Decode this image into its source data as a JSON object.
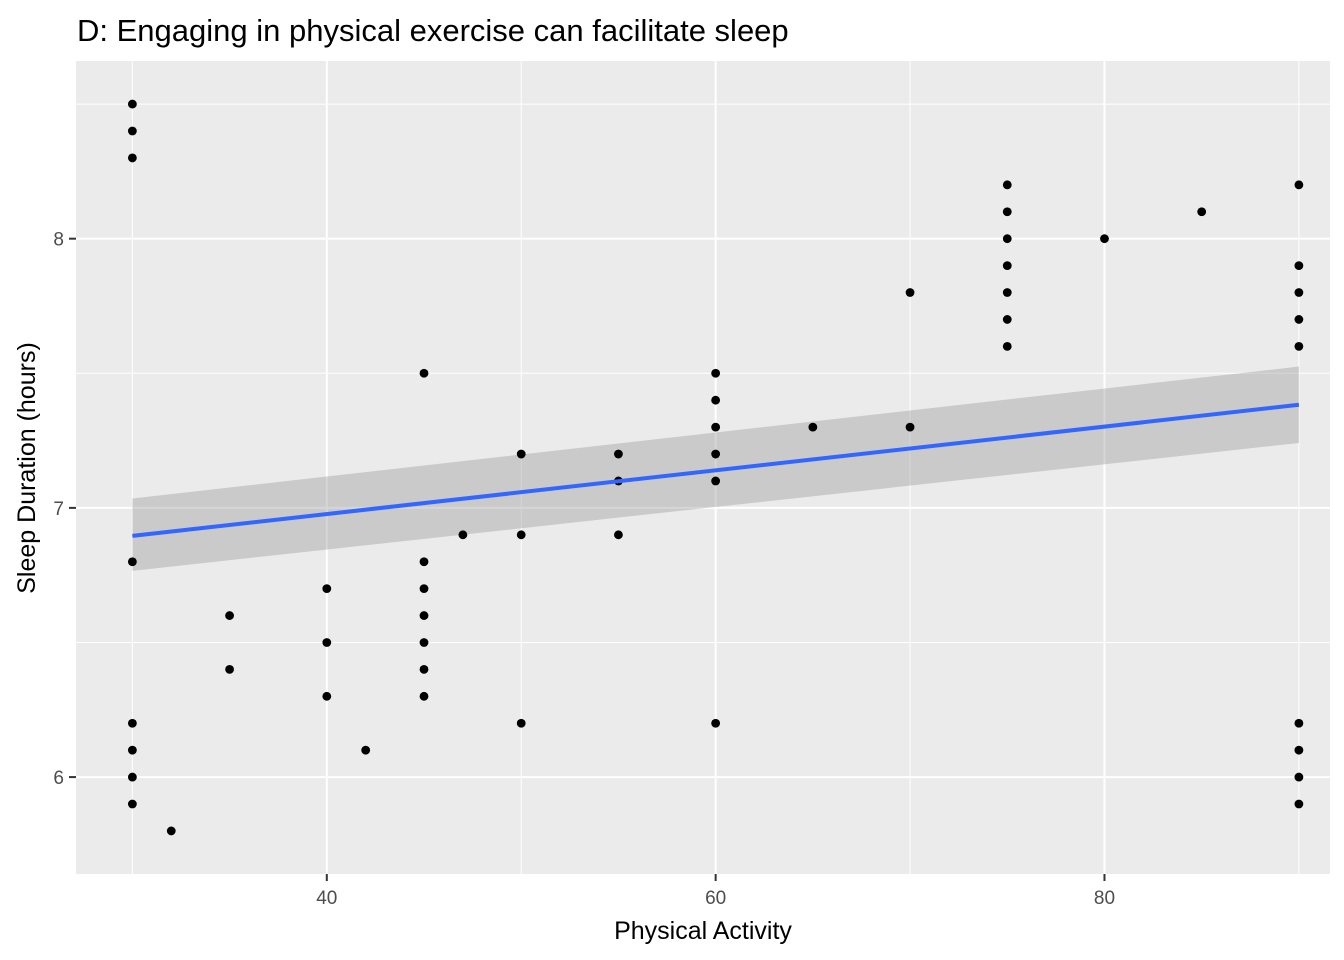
{
  "chart_data": {
    "type": "scatter",
    "title": "D: Engaging in physical exercise can facilitate sleep",
    "xlabel": "Physical Activity",
    "ylabel": "Sleep Duration (hours)",
    "xlim": [
      27.1,
      91.6
    ],
    "ylim": [
      5.64,
      8.66
    ],
    "x_ticks": [
      40,
      60,
      80
    ],
    "y_ticks": [
      6,
      7,
      8
    ],
    "x_tick_labels": [
      "40",
      "60",
      "80"
    ],
    "y_tick_labels": [
      "6",
      "7",
      "8"
    ],
    "grid": true,
    "background_color": "#ebebeb",
    "point_color": "#000000",
    "points": [
      {
        "x": 30,
        "y": 8.5
      },
      {
        "x": 30,
        "y": 8.4
      },
      {
        "x": 30,
        "y": 8.3
      },
      {
        "x": 30,
        "y": 6.8
      },
      {
        "x": 30,
        "y": 6.2
      },
      {
        "x": 30,
        "y": 6.1
      },
      {
        "x": 30,
        "y": 6.0
      },
      {
        "x": 30,
        "y": 5.9
      },
      {
        "x": 32,
        "y": 5.8
      },
      {
        "x": 35,
        "y": 6.6
      },
      {
        "x": 35,
        "y": 6.4
      },
      {
        "x": 40,
        "y": 6.7
      },
      {
        "x": 40,
        "y": 6.5
      },
      {
        "x": 40,
        "y": 6.3
      },
      {
        "x": 42,
        "y": 6.1
      },
      {
        "x": 45,
        "y": 7.5
      },
      {
        "x": 45,
        "y": 6.8
      },
      {
        "x": 45,
        "y": 6.7
      },
      {
        "x": 45,
        "y": 6.6
      },
      {
        "x": 45,
        "y": 6.5
      },
      {
        "x": 45,
        "y": 6.4
      },
      {
        "x": 45,
        "y": 6.3
      },
      {
        "x": 47,
        "y": 6.9
      },
      {
        "x": 50,
        "y": 7.2
      },
      {
        "x": 50,
        "y": 6.9
      },
      {
        "x": 50,
        "y": 6.2
      },
      {
        "x": 55,
        "y": 7.2
      },
      {
        "x": 55,
        "y": 7.1
      },
      {
        "x": 55,
        "y": 6.9
      },
      {
        "x": 60,
        "y": 7.5
      },
      {
        "x": 60,
        "y": 7.4
      },
      {
        "x": 60,
        "y": 7.3
      },
      {
        "x": 60,
        "y": 7.2
      },
      {
        "x": 60,
        "y": 7.1
      },
      {
        "x": 60,
        "y": 6.2
      },
      {
        "x": 65,
        "y": 7.3
      },
      {
        "x": 70,
        "y": 7.8
      },
      {
        "x": 70,
        "y": 7.3
      },
      {
        "x": 75,
        "y": 8.2
      },
      {
        "x": 75,
        "y": 8.1
      },
      {
        "x": 75,
        "y": 8.0
      },
      {
        "x": 75,
        "y": 7.9
      },
      {
        "x": 75,
        "y": 7.8
      },
      {
        "x": 75,
        "y": 7.7
      },
      {
        "x": 75,
        "y": 7.6
      },
      {
        "x": 80,
        "y": 8.0
      },
      {
        "x": 85,
        "y": 8.1
      },
      {
        "x": 90,
        "y": 8.2
      },
      {
        "x": 90,
        "y": 7.9
      },
      {
        "x": 90,
        "y": 7.8
      },
      {
        "x": 90,
        "y": 7.7
      },
      {
        "x": 90,
        "y": 7.6
      },
      {
        "x": 90,
        "y": 6.2
      },
      {
        "x": 90,
        "y": 6.1
      },
      {
        "x": 90,
        "y": 6.0
      },
      {
        "x": 90,
        "y": 5.9
      }
    ],
    "trend_line": {
      "method": "lm",
      "color": "#3366ff",
      "band_color": "#999999",
      "x": [
        30,
        90
      ],
      "y": [
        6.896,
        7.383
      ],
      "ci_lower": [
        6.766,
        7.241
      ],
      "ci_upper": [
        7.035,
        7.525
      ]
    }
  }
}
